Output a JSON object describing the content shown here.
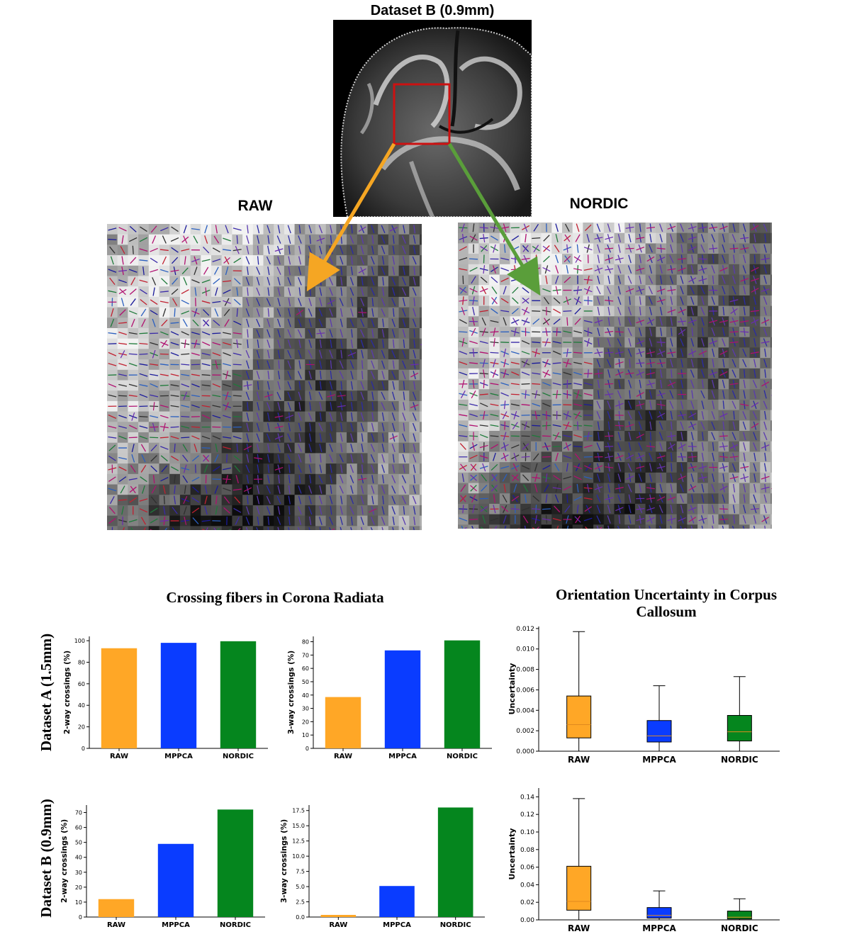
{
  "figure": {
    "top_title": "Dataset B (0.9mm)",
    "raw_label": "RAW",
    "nordic_label": "NORDIC",
    "left_section_title": "Crossing fibers in Corona Radiata",
    "right_section_title": "Orientation Uncertainty in Corpus Callosum",
    "row_label_a": "Dataset A (1.5mm)",
    "row_label_b": "Dataset B (0.9mm)",
    "colors": {
      "raw": "#FFA726",
      "mppca": "#0A3CFF",
      "nordic": "#05861E",
      "roi_box": "#CC1111",
      "arrow_raw": "#F5A623",
      "arrow_nordic": "#5A9E3A"
    }
  },
  "chart_data": [
    {
      "id": "a_2way",
      "type": "bar",
      "categories": [
        "RAW",
        "MPPCA",
        "NORDIC"
      ],
      "values": [
        93,
        98,
        99.5
      ],
      "ylabel": "2-way crossings (%)",
      "ylim": [
        0,
        104
      ],
      "yticks": [
        0,
        20,
        40,
        60,
        80,
        100
      ],
      "yticklabels": [
        "0",
        "20",
        "40",
        "60",
        "80",
        "100"
      ]
    },
    {
      "id": "a_3way",
      "type": "bar",
      "categories": [
        "RAW",
        "MPPCA",
        "NORDIC"
      ],
      "values": [
        38.5,
        73.5,
        81
      ],
      "ylabel": "3-way crossings (%)",
      "ylim": [
        0,
        84
      ],
      "yticks": [
        0,
        10,
        20,
        30,
        40,
        50,
        60,
        70,
        80
      ],
      "yticklabels": [
        "0",
        "10",
        "20",
        "30",
        "40",
        "50",
        "60",
        "70",
        "80"
      ]
    },
    {
      "id": "b_2way",
      "type": "bar",
      "categories": [
        "RAW",
        "MPPCA",
        "NORDIC"
      ],
      "values": [
        12,
        49,
        72
      ],
      "ylabel": "2-way crossings (%)",
      "ylim": [
        0,
        75
      ],
      "yticks": [
        0,
        10,
        20,
        30,
        40,
        50,
        60,
        70
      ],
      "yticklabels": [
        "0",
        "10",
        "20",
        "30",
        "40",
        "50",
        "60",
        "70"
      ]
    },
    {
      "id": "b_3way",
      "type": "bar",
      "categories": [
        "RAW",
        "MPPCA",
        "NORDIC"
      ],
      "values": [
        0.35,
        5.1,
        18
      ],
      "ylabel": "3-way crossings (%)",
      "ylim": [
        0,
        18.4
      ],
      "yticks": [
        0,
        2.5,
        5,
        7.5,
        10,
        12.5,
        15,
        17.5
      ],
      "yticklabels": [
        "0.0",
        "2.5",
        "5.0",
        "7.5",
        "10.0",
        "12.5",
        "15.0",
        "17.5"
      ]
    },
    {
      "id": "a_unc",
      "type": "box",
      "categories": [
        "RAW",
        "MPPCA",
        "NORDIC"
      ],
      "ylabel": "Uncertainty",
      "ylim": [
        0,
        0.0122
      ],
      "yticks": [
        0,
        0.002,
        0.004,
        0.006,
        0.008,
        0.01,
        0.012
      ],
      "yticklabels": [
        "0.000",
        "0.002",
        "0.004",
        "0.006",
        "0.008",
        "0.010",
        "0.012"
      ],
      "boxes": [
        {
          "min": 0.0,
          "q1": 0.0013,
          "median": 0.0026,
          "q3": 0.0054,
          "max": 0.0117
        },
        {
          "min": 0.0,
          "q1": 0.0009,
          "median": 0.0015,
          "q3": 0.003,
          "max": 0.0064
        },
        {
          "min": 0.0,
          "q1": 0.001,
          "median": 0.0019,
          "q3": 0.0035,
          "max": 0.0073
        }
      ]
    },
    {
      "id": "b_unc",
      "type": "box",
      "categories": [
        "RAW",
        "MPPCA",
        "NORDIC"
      ],
      "ylabel": "Uncertainty",
      "ylim": [
        0,
        0.15
      ],
      "yticks": [
        0,
        0.02,
        0.04,
        0.06,
        0.08,
        0.1,
        0.12,
        0.14
      ],
      "yticklabels": [
        "0.00",
        "0.02",
        "0.04",
        "0.06",
        "0.08",
        "0.10",
        "0.12",
        "0.14"
      ],
      "boxes": [
        {
          "min": 0.0,
          "q1": 0.011,
          "median": 0.021,
          "q3": 0.061,
          "max": 0.138
        },
        {
          "min": 0.0,
          "q1": 0.002,
          "median": 0.005,
          "q3": 0.014,
          "max": 0.033
        },
        {
          "min": 0.0,
          "q1": 0.001,
          "median": 0.003,
          "q3": 0.01,
          "max": 0.024
        }
      ]
    }
  ]
}
